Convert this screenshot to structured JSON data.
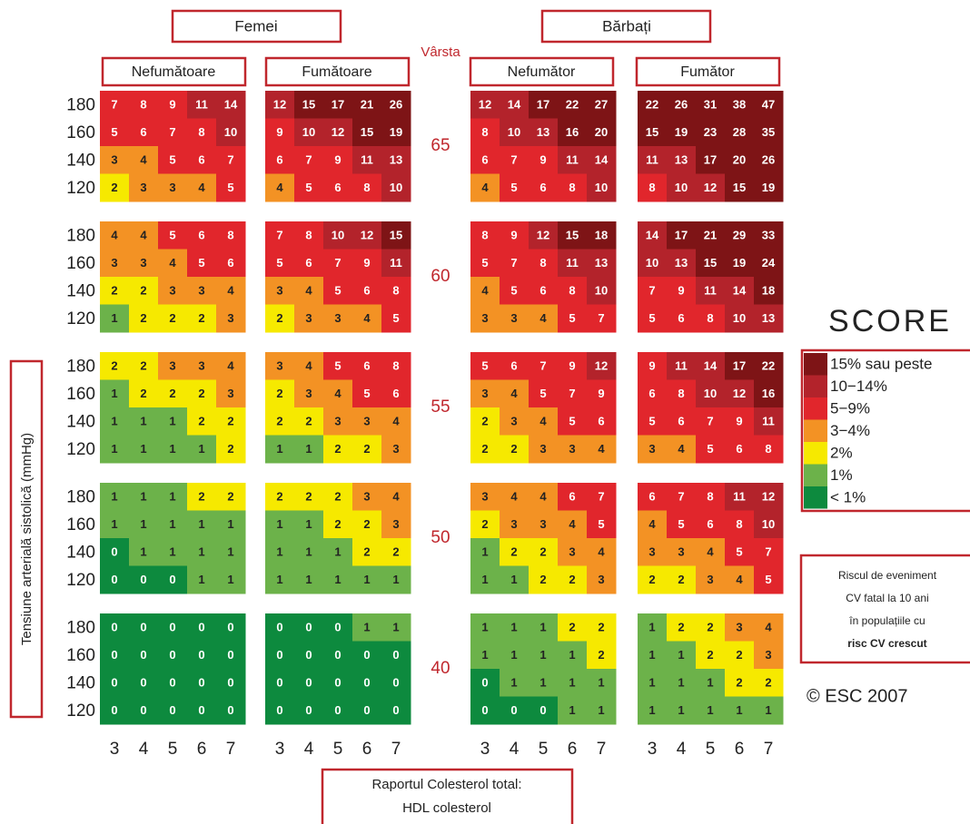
{
  "header": {
    "groups": [
      "Femei",
      "Bărbați"
    ],
    "age_label": "Vârsta",
    "subgroups": [
      "Nefumătoare",
      "Fumătoare",
      "Nefumător",
      "Fumător"
    ]
  },
  "y_axis_label": "Tensiune arterială sistolică (mmHg)",
  "ages": [
    65,
    60,
    55,
    50,
    40
  ],
  "systolic": [
    180,
    160,
    140,
    120
  ],
  "cholesterol": [
    3,
    4,
    5,
    6,
    7
  ],
  "panels": [
    {
      "values": [
        [
          [
            7,
            8,
            9,
            11,
            14
          ],
          [
            5,
            6,
            7,
            8,
            10
          ],
          [
            3,
            4,
            5,
            6,
            7
          ],
          [
            2,
            3,
            3,
            4,
            5
          ]
        ],
        [
          [
            4,
            4,
            5,
            6,
            8
          ],
          [
            3,
            3,
            4,
            5,
            6
          ],
          [
            2,
            2,
            3,
            3,
            4
          ],
          [
            1,
            2,
            2,
            2,
            3
          ]
        ],
        [
          [
            2,
            2,
            3,
            3,
            4
          ],
          [
            1,
            2,
            2,
            2,
            3
          ],
          [
            1,
            1,
            1,
            2,
            2
          ],
          [
            1,
            1,
            1,
            1,
            2
          ]
        ],
        [
          [
            1,
            1,
            1,
            2,
            2
          ],
          [
            1,
            1,
            1,
            1,
            1
          ],
          [
            0,
            1,
            1,
            1,
            1
          ],
          [
            0,
            0,
            0,
            1,
            1
          ]
        ],
        [
          [
            0,
            0,
            0,
            0,
            0
          ],
          [
            0,
            0,
            0,
            0,
            0
          ],
          [
            0,
            0,
            0,
            0,
            0
          ],
          [
            0,
            0,
            0,
            0,
            0
          ]
        ]
      ]
    },
    {
      "values": [
        [
          [
            12,
            15,
            17,
            21,
            26
          ],
          [
            9,
            10,
            12,
            15,
            19
          ],
          [
            6,
            7,
            9,
            11,
            13
          ],
          [
            4,
            5,
            6,
            8,
            10
          ]
        ],
        [
          [
            7,
            8,
            10,
            12,
            15
          ],
          [
            5,
            6,
            7,
            9,
            11
          ],
          [
            3,
            4,
            5,
            6,
            8
          ],
          [
            2,
            3,
            3,
            4,
            5
          ]
        ],
        [
          [
            3,
            4,
            5,
            6,
            8
          ],
          [
            2,
            3,
            4,
            5,
            6
          ],
          [
            2,
            2,
            3,
            3,
            4
          ],
          [
            1,
            1,
            2,
            2,
            3
          ]
        ],
        [
          [
            2,
            2,
            2,
            3,
            4
          ],
          [
            1,
            1,
            2,
            2,
            3
          ],
          [
            1,
            1,
            1,
            2,
            2
          ],
          [
            1,
            1,
            1,
            1,
            1
          ]
        ],
        [
          [
            0,
            0,
            0,
            1,
            1
          ],
          [
            0,
            0,
            0,
            0,
            0
          ],
          [
            0,
            0,
            0,
            0,
            0
          ],
          [
            0,
            0,
            0,
            0,
            0
          ]
        ]
      ]
    },
    {
      "values": [
        [
          [
            12,
            14,
            17,
            22,
            27
          ],
          [
            8,
            10,
            13,
            16,
            20
          ],
          [
            6,
            7,
            9,
            11,
            14
          ],
          [
            4,
            5,
            6,
            8,
            10
          ]
        ],
        [
          [
            8,
            9,
            12,
            15,
            18
          ],
          [
            5,
            7,
            8,
            11,
            13
          ],
          [
            4,
            5,
            6,
            8,
            10
          ],
          [
            3,
            3,
            4,
            5,
            7
          ]
        ],
        [
          [
            5,
            6,
            7,
            9,
            12
          ],
          [
            3,
            4,
            5,
            7,
            9
          ],
          [
            2,
            3,
            4,
            5,
            6
          ],
          [
            2,
            2,
            3,
            3,
            4
          ]
        ],
        [
          [
            3,
            4,
            4,
            6,
            7
          ],
          [
            2,
            3,
            3,
            4,
            5
          ],
          [
            1,
            2,
            2,
            3,
            4
          ],
          [
            1,
            1,
            2,
            2,
            3
          ]
        ],
        [
          [
            1,
            1,
            1,
            2,
            2
          ],
          [
            1,
            1,
            1,
            1,
            2
          ],
          [
            0,
            1,
            1,
            1,
            1
          ],
          [
            0,
            0,
            0,
            1,
            1
          ]
        ]
      ]
    },
    {
      "values": [
        [
          [
            22,
            26,
            31,
            38,
            47
          ],
          [
            15,
            19,
            23,
            28,
            35
          ],
          [
            11,
            13,
            17,
            20,
            26
          ],
          [
            8,
            10,
            12,
            15,
            19
          ]
        ],
        [
          [
            14,
            17,
            21,
            29,
            33
          ],
          [
            10,
            13,
            15,
            19,
            24
          ],
          [
            7,
            9,
            11,
            14,
            18
          ],
          [
            5,
            6,
            8,
            10,
            13
          ]
        ],
        [
          [
            9,
            11,
            14,
            17,
            22
          ],
          [
            6,
            8,
            10,
            12,
            16
          ],
          [
            5,
            6,
            7,
            9,
            11
          ],
          [
            3,
            4,
            5,
            6,
            8
          ]
        ],
        [
          [
            6,
            7,
            8,
            11,
            12
          ],
          [
            4,
            5,
            6,
            8,
            10
          ],
          [
            3,
            3,
            4,
            5,
            7
          ],
          [
            2,
            2,
            3,
            4,
            5
          ]
        ],
        [
          [
            1,
            2,
            2,
            3,
            4
          ],
          [
            1,
            1,
            2,
            2,
            3
          ],
          [
            1,
            1,
            1,
            2,
            2
          ],
          [
            1,
            1,
            1,
            1,
            1
          ]
        ]
      ]
    }
  ],
  "x_axis_label": [
    "Raportul Colesterol total:",
    "HDL colesterol"
  ],
  "logo": "SCORE",
  "legend": [
    {
      "label": "15% sau peste",
      "color": "#7e1416",
      "text_color": "#ffffff"
    },
    {
      "label": "10−14%",
      "color": "#b3232b",
      "text_color": "#ffffff"
    },
    {
      "label": "5−9%",
      "color": "#e1262c",
      "text_color": "#ffffff"
    },
    {
      "label": "3−4%",
      "color": "#f39224",
      "text_color": "#222222"
    },
    {
      "label": "2%",
      "color": "#f6e900",
      "text_color": "#222222"
    },
    {
      "label": "1%",
      "color": "#6cb24a",
      "text_color": "#222222"
    },
    {
      "label": "< 1%",
      "color": "#0d8a3e",
      "text_color": "#ffffff"
    }
  ],
  "note": [
    "Riscul de eveniment",
    "CV fatal la 10 ani",
    "în populațiile cu",
    "risc CV crescut"
  ],
  "copyright": "© ESC 2007"
}
